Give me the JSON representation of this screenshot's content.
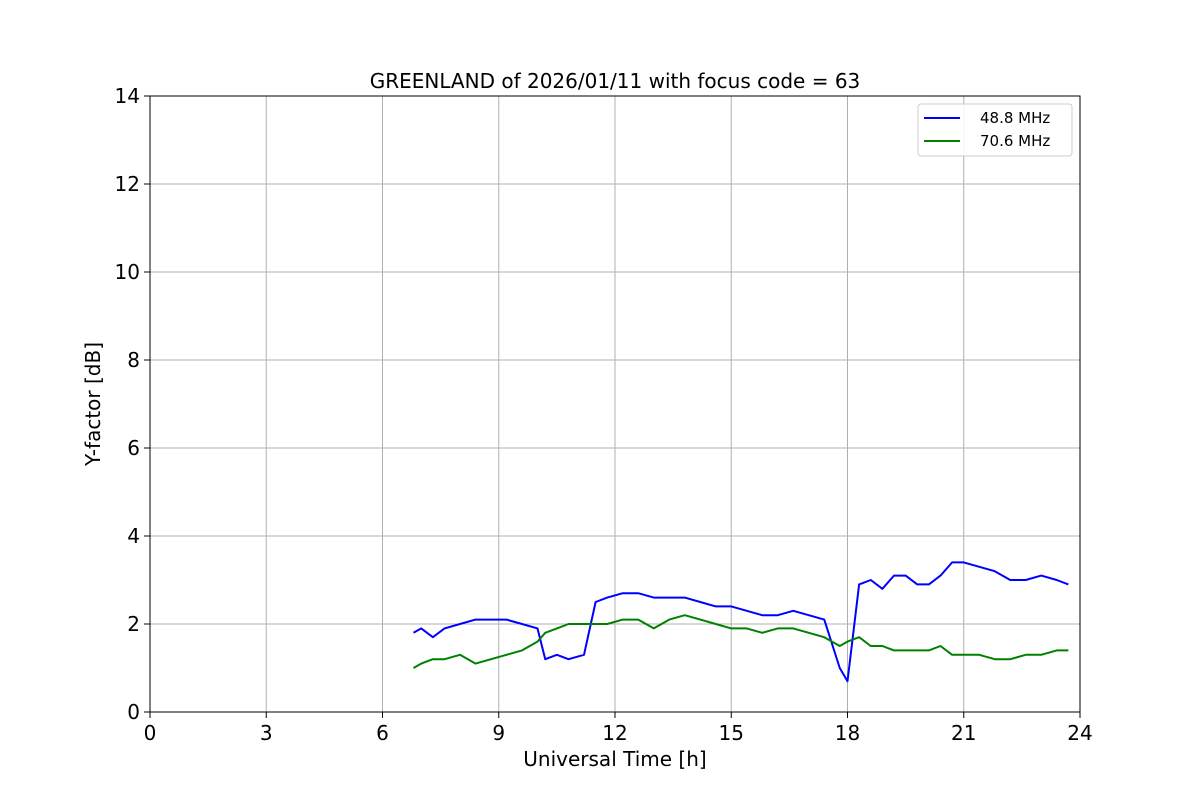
{
  "chart_data": {
    "type": "line",
    "title": "GREENLAND of 2026/01/11 with focus code = 63",
    "xlabel": "Universal Time [h]",
    "ylabel": "Y-factor [dB]",
    "xlim": [
      0,
      24
    ],
    "ylim": [
      0,
      14
    ],
    "xticks": [
      0,
      3,
      6,
      9,
      12,
      15,
      18,
      21,
      24
    ],
    "yticks": [
      0,
      2,
      4,
      6,
      8,
      10,
      12,
      14
    ],
    "grid": true,
    "legend_position": "top-right",
    "series": [
      {
        "name": "48.8 MHz",
        "color": "#0000ff",
        "x": [
          6.8,
          7.0,
          7.3,
          7.6,
          8.0,
          8.4,
          8.8,
          9.2,
          9.6,
          10.0,
          10.2,
          10.5,
          10.8,
          11.2,
          11.5,
          11.8,
          12.2,
          12.6,
          13.0,
          13.4,
          13.8,
          14.2,
          14.6,
          15.0,
          15.4,
          15.8,
          16.2,
          16.6,
          17.0,
          17.4,
          17.8,
          18.0,
          18.3,
          18.6,
          18.9,
          19.2,
          19.5,
          19.8,
          20.1,
          20.4,
          20.7,
          21.0,
          21.4,
          21.8,
          22.2,
          22.6,
          23.0,
          23.4,
          23.7
        ],
        "y": [
          1.8,
          1.9,
          1.7,
          1.9,
          2.0,
          2.1,
          2.1,
          2.1,
          2.0,
          1.9,
          1.2,
          1.3,
          1.2,
          1.3,
          2.5,
          2.6,
          2.7,
          2.7,
          2.6,
          2.6,
          2.6,
          2.5,
          2.4,
          2.4,
          2.3,
          2.2,
          2.2,
          2.3,
          2.2,
          2.1,
          1.0,
          0.7,
          2.9,
          3.0,
          2.8,
          3.1,
          3.1,
          2.9,
          2.9,
          3.1,
          3.4,
          3.4,
          3.3,
          3.2,
          3.0,
          3.0,
          3.1,
          3.0,
          2.9
        ]
      },
      {
        "name": "70.6 MHz",
        "color": "#008000",
        "x": [
          6.8,
          7.0,
          7.3,
          7.6,
          8.0,
          8.4,
          8.8,
          9.2,
          9.6,
          10.0,
          10.2,
          10.5,
          10.8,
          11.2,
          11.5,
          11.8,
          12.2,
          12.6,
          13.0,
          13.4,
          13.8,
          14.2,
          14.6,
          15.0,
          15.4,
          15.8,
          16.2,
          16.6,
          17.0,
          17.4,
          17.8,
          18.0,
          18.3,
          18.6,
          18.9,
          19.2,
          19.5,
          19.8,
          20.1,
          20.4,
          20.7,
          21.0,
          21.4,
          21.8,
          22.2,
          22.6,
          23.0,
          23.4,
          23.7
        ],
        "y": [
          1.0,
          1.1,
          1.2,
          1.2,
          1.3,
          1.1,
          1.2,
          1.3,
          1.4,
          1.6,
          1.8,
          1.9,
          2.0,
          2.0,
          2.0,
          2.0,
          2.1,
          2.1,
          1.9,
          2.1,
          2.2,
          2.1,
          2.0,
          1.9,
          1.9,
          1.8,
          1.9,
          1.9,
          1.8,
          1.7,
          1.5,
          1.6,
          1.7,
          1.5,
          1.5,
          1.4,
          1.4,
          1.4,
          1.4,
          1.5,
          1.3,
          1.3,
          1.3,
          1.2,
          1.2,
          1.3,
          1.3,
          1.4,
          1.4
        ]
      }
    ]
  }
}
